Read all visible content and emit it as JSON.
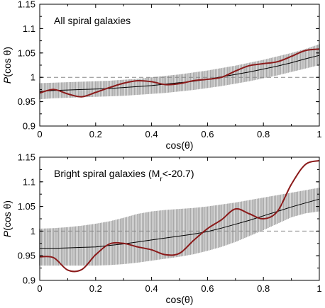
{
  "chart_data": [
    {
      "type": "line",
      "title": "All spiral galaxies",
      "xlabel": "cos(θ)",
      "ylabel": "P(cos θ)",
      "xlim": [
        0,
        1
      ],
      "ylim": [
        0.9,
        1.15
      ],
      "xticks": [
        "0",
        "0.2",
        "0.4",
        "0.6",
        "0.8",
        "1"
      ],
      "yticks": [
        "0.9",
        "0.95",
        "1",
        "1.05",
        "1.1",
        "1.15"
      ],
      "reference_line": 1.0,
      "colors": {
        "band": "#a9a9a9",
        "mean": "#000000",
        "measured": "#8b1a1a",
        "reference": "#888888"
      },
      "x": [
        0,
        0.05,
        0.1,
        0.15,
        0.2,
        0.25,
        0.3,
        0.35,
        0.4,
        0.45,
        0.5,
        0.55,
        0.6,
        0.65,
        0.7,
        0.75,
        0.8,
        0.85,
        0.9,
        0.95,
        1.0
      ],
      "band_upper": [
        0.988,
        0.989,
        0.99,
        0.991,
        0.992,
        0.993,
        0.995,
        0.997,
        1.0,
        1.003,
        1.006,
        1.01,
        1.014,
        1.019,
        1.024,
        1.03,
        1.036,
        1.043,
        1.05,
        1.058,
        1.068
      ],
      "band_lower": [
        0.955,
        0.957,
        0.958,
        0.959,
        0.96,
        0.961,
        0.962,
        0.964,
        0.966,
        0.968,
        0.971,
        0.974,
        0.978,
        0.982,
        0.987,
        0.992,
        0.998,
        1.004,
        1.011,
        1.018,
        1.025
      ],
      "mean": [
        0.971,
        0.973,
        0.974,
        0.975,
        0.976,
        0.977,
        0.979,
        0.981,
        0.983,
        0.986,
        0.989,
        0.992,
        0.996,
        1.001,
        1.006,
        1.011,
        1.017,
        1.023,
        1.03,
        1.038,
        1.045
      ],
      "measured": [
        0.968,
        0.975,
        0.966,
        0.96,
        0.969,
        0.979,
        0.988,
        0.993,
        0.991,
        0.985,
        0.987,
        0.993,
        0.996,
        1.0,
        1.013,
        1.024,
        1.028,
        1.032,
        1.043,
        1.055,
        1.058
      ]
    },
    {
      "type": "line",
      "title": "Bright spiral galaxies (M",
      "title_sub": "r",
      "title_tail": "<-20.7)",
      "xlabel": "cos(θ)",
      "ylabel": "P(cos θ)",
      "xlim": [
        0,
        1
      ],
      "ylim": [
        0.9,
        1.15
      ],
      "xticks": [
        "0",
        "0.2",
        "0.4",
        "0.6",
        "0.8",
        "1"
      ],
      "yticks": [
        "0.9",
        "0.95",
        "1",
        "1.05",
        "1.1",
        "1.15"
      ],
      "reference_line": 1.0,
      "colors": {
        "band": "#a9a9a9",
        "mean": "#000000",
        "measured": "#8b1a1a",
        "reference": "#888888"
      },
      "x": [
        0,
        0.05,
        0.1,
        0.15,
        0.2,
        0.25,
        0.3,
        0.35,
        0.4,
        0.45,
        0.5,
        0.55,
        0.6,
        0.65,
        0.7,
        0.75,
        0.8,
        0.85,
        0.9,
        0.95,
        1.0
      ],
      "band_upper": [
        1.005,
        1.006,
        1.008,
        1.011,
        1.015,
        1.02,
        1.027,
        1.035,
        1.04,
        1.043,
        1.045,
        1.047,
        1.05,
        1.054,
        1.058,
        1.063,
        1.068,
        1.073,
        1.078,
        1.083,
        1.088
      ],
      "band_lower": [
        0.93,
        0.93,
        0.93,
        0.93,
        0.93,
        0.931,
        0.933,
        0.936,
        0.94,
        0.944,
        0.948,
        0.953,
        0.96,
        0.968,
        0.978,
        0.99,
        1.002,
        1.015,
        1.028,
        1.036,
        1.04
      ],
      "mean": [
        0.965,
        0.965,
        0.966,
        0.967,
        0.968,
        0.971,
        0.974,
        0.978,
        0.982,
        0.986,
        0.99,
        0.994,
        0.999,
        1.006,
        1.014,
        1.022,
        1.031,
        1.04,
        1.049,
        1.057,
        1.065
      ],
      "measured": [
        0.948,
        0.946,
        0.921,
        0.922,
        0.952,
        0.974,
        0.975,
        0.968,
        0.962,
        0.952,
        0.955,
        0.981,
        1.005,
        1.023,
        1.045,
        1.035,
        1.025,
        1.04,
        1.095,
        1.135,
        1.143
      ]
    }
  ]
}
